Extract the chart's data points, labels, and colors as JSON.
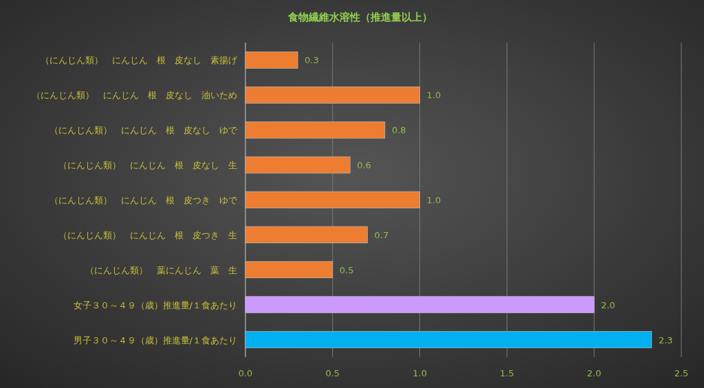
{
  "chart_data": {
    "type": "bar",
    "orientation": "horizontal",
    "title": "食物繊維水溶性（推進量以上）",
    "categories": [
      "（にんじん類）　にんじん　根　皮なし　素揚げ",
      "（にんじん類）　にんじん　根　皮なし　油いため",
      "（にんじん類）　にんじん　根　皮なし　ゆで",
      "（にんじん類）　にんじん　根　皮なし　生",
      "（にんじん類）　にんじん　根　皮つき　ゆで",
      "（にんじん類）　にんじん　根　皮つき　生",
      "（にんじん類）　葉にんじん　葉　生",
      "女子３０～４９（歳）推進量/１食あたり",
      "男子３０～４９（歳）推進量/１食あたり"
    ],
    "values": [
      0.3,
      1.0,
      0.8,
      0.6,
      1.0,
      0.7,
      0.5,
      2.0,
      2.33
    ],
    "value_labels": [
      "0.3",
      "1.0",
      "0.8",
      "0.6",
      "1.0",
      "0.7",
      "0.5",
      "2.0",
      "2.3"
    ],
    "colors": [
      "#ed7d31",
      "#ed7d31",
      "#ed7d31",
      "#ed7d31",
      "#ed7d31",
      "#ed7d31",
      "#ed7d31",
      "#cc99ff",
      "#00b0f0"
    ],
    "xlim": [
      0,
      2.5
    ],
    "xticks": [
      {
        "value": 0,
        "label": "0.0"
      },
      {
        "value": 0.5,
        "label": "0.5"
      },
      {
        "value": 1,
        "label": "1.0"
      },
      {
        "value": 1.5,
        "label": "1.5"
      },
      {
        "value": 2,
        "label": "2.0"
      },
      {
        "value": 2.5,
        "label": "2.5"
      }
    ],
    "grid": "x"
  }
}
